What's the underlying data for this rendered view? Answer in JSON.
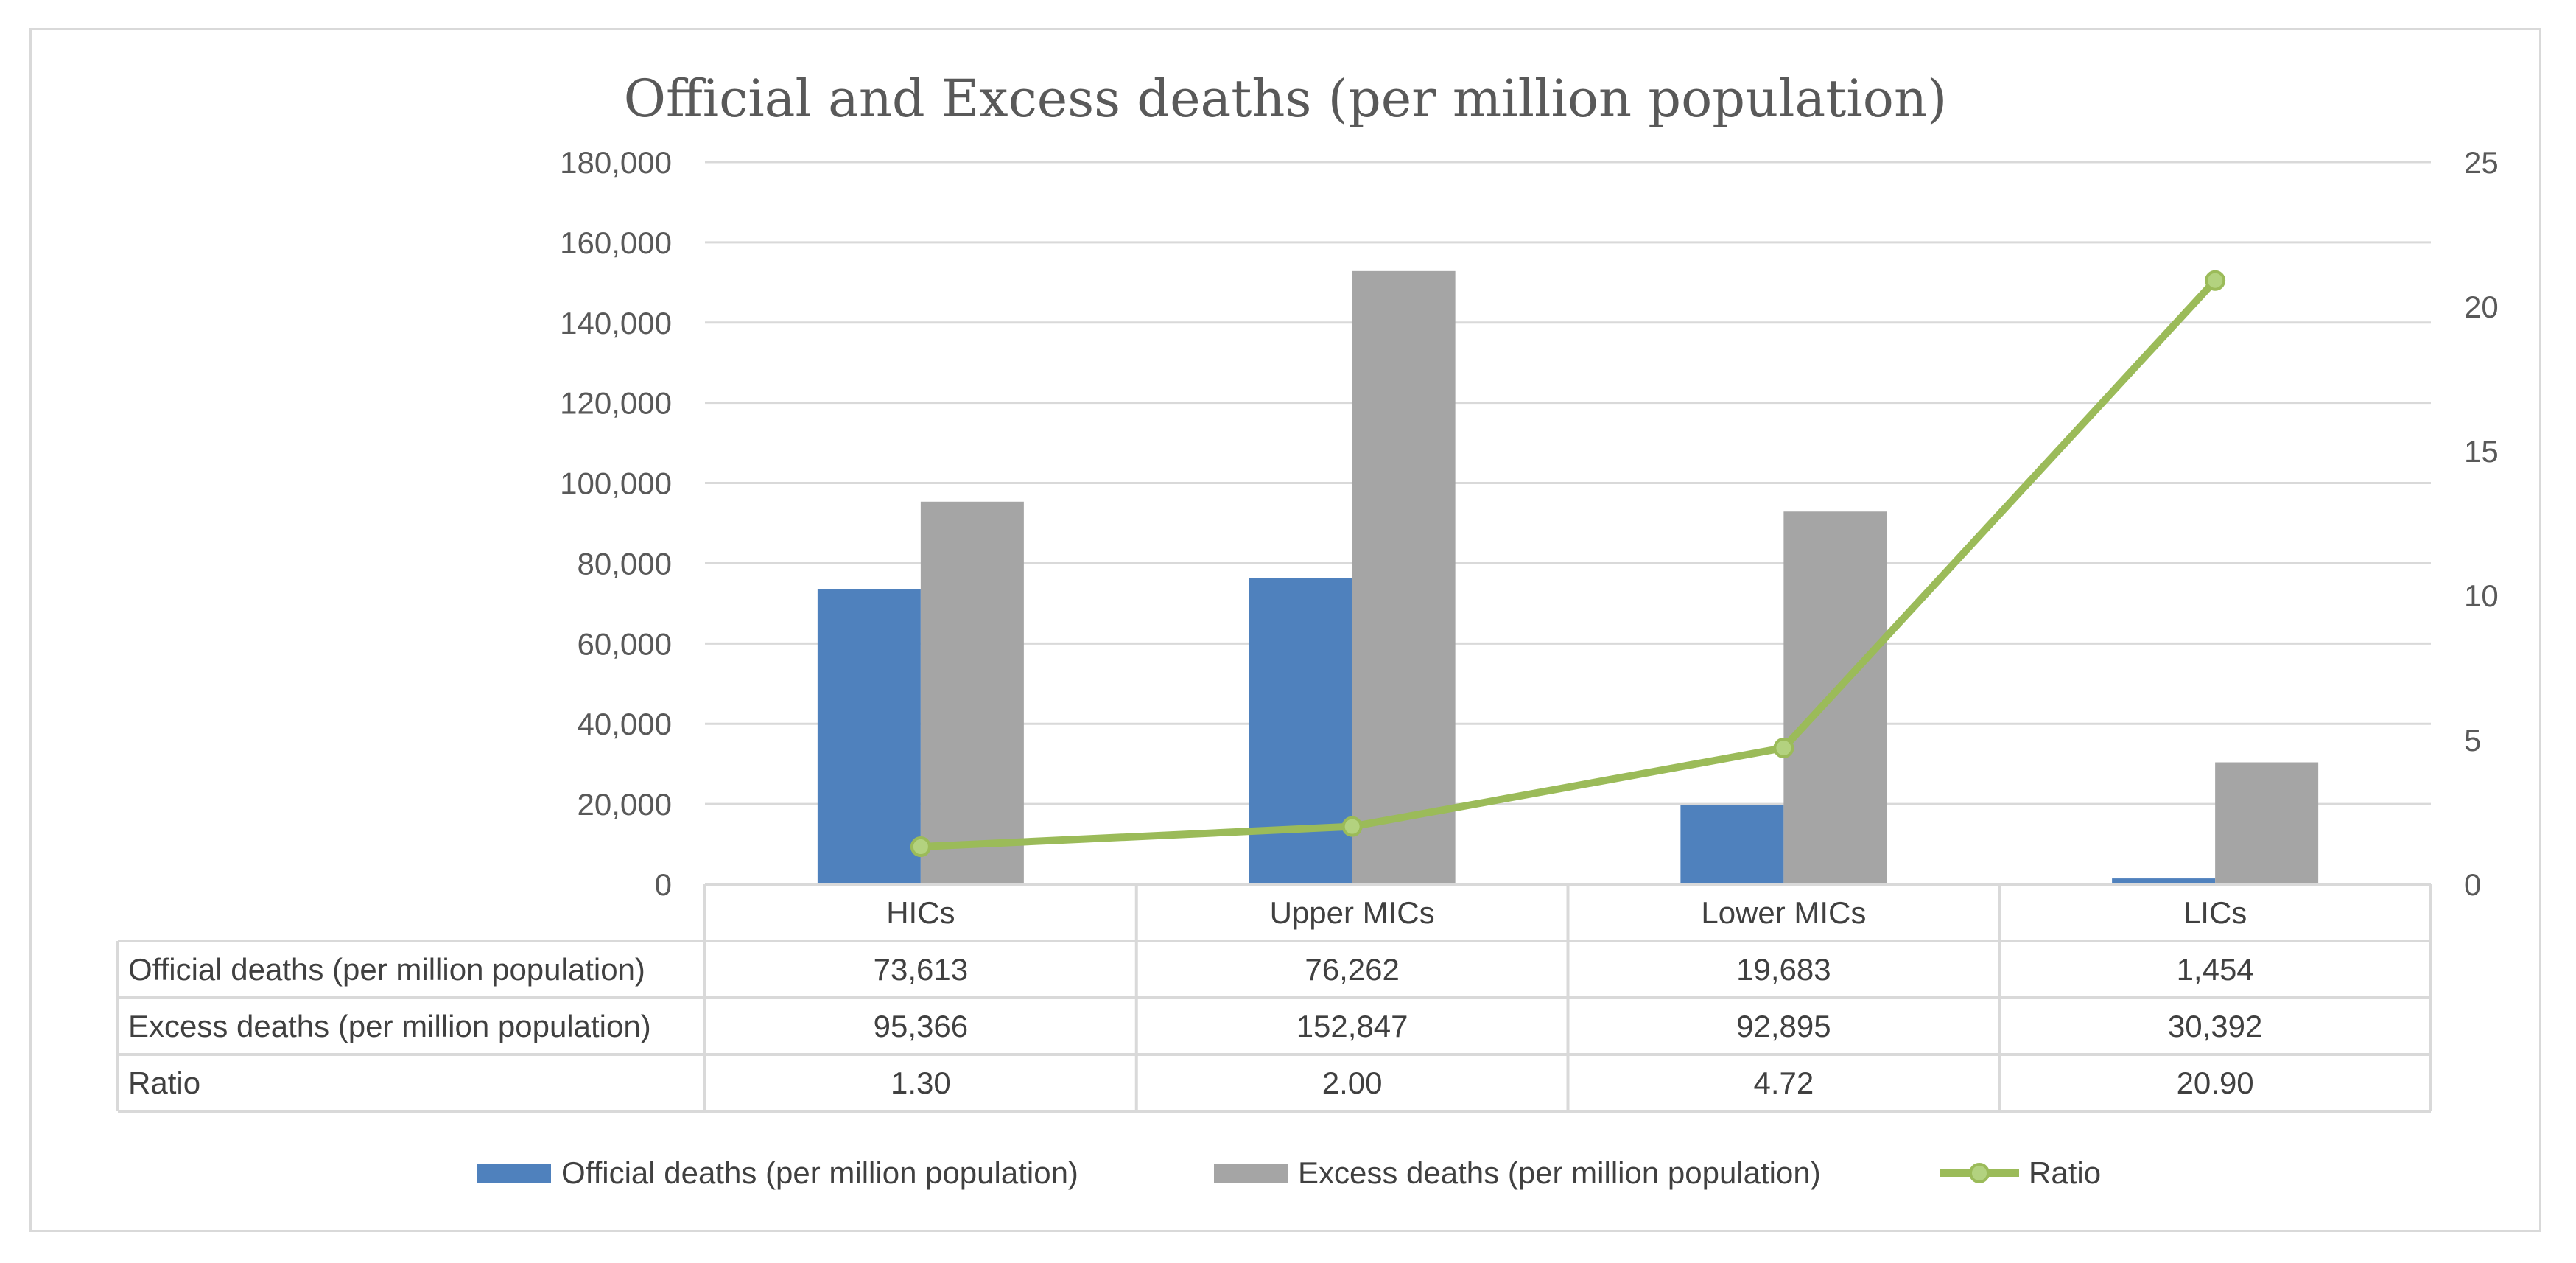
{
  "chart_data": {
    "type": "bar",
    "title": "Official and Excess deaths (per million population)",
    "categories": [
      "HICs",
      "Upper MICs",
      "Lower MICs",
      "LICs"
    ],
    "series": [
      {
        "name": "Official deaths (per million population)",
        "kind": "bar",
        "axis": "left",
        "color": "#4f81bd",
        "values": [
          73613,
          76262,
          19683,
          1454
        ],
        "labels": [
          "73,613",
          "76,262",
          "19,683",
          "1,454"
        ]
      },
      {
        "name": "Excess deaths (per million population)",
        "kind": "bar",
        "axis": "left",
        "color": "#a5a5a5",
        "values": [
          95366,
          152847,
          92895,
          30392
        ],
        "labels": [
          "95,366",
          "152,847",
          "92,895",
          "30,392"
        ]
      },
      {
        "name": "Ratio",
        "kind": "line",
        "axis": "right",
        "color": "#9bbb59",
        "values": [
          1.3,
          2.0,
          4.72,
          20.9
        ],
        "labels": [
          "1.30",
          "2.00",
          "4.72",
          "20.90"
        ]
      }
    ],
    "ylim": [
      0,
      180000
    ],
    "y_ticks": [
      0,
      20000,
      40000,
      60000,
      80000,
      100000,
      120000,
      140000,
      160000,
      180000
    ],
    "y_tick_labels": [
      "0",
      "20,000",
      "40,000",
      "60,000",
      "80,000",
      "100,000",
      "120,000",
      "140,000",
      "160,000",
      "180,000"
    ],
    "y2lim": [
      0,
      25
    ],
    "y2_ticks": [
      0,
      5,
      10,
      15,
      20,
      25
    ],
    "y2_tick_labels": [
      "0",
      "5",
      "10",
      "15",
      "20",
      "25"
    ],
    "grid": true,
    "legend": "bottom",
    "data_table": true,
    "xlabel": "",
    "ylabel": ""
  }
}
